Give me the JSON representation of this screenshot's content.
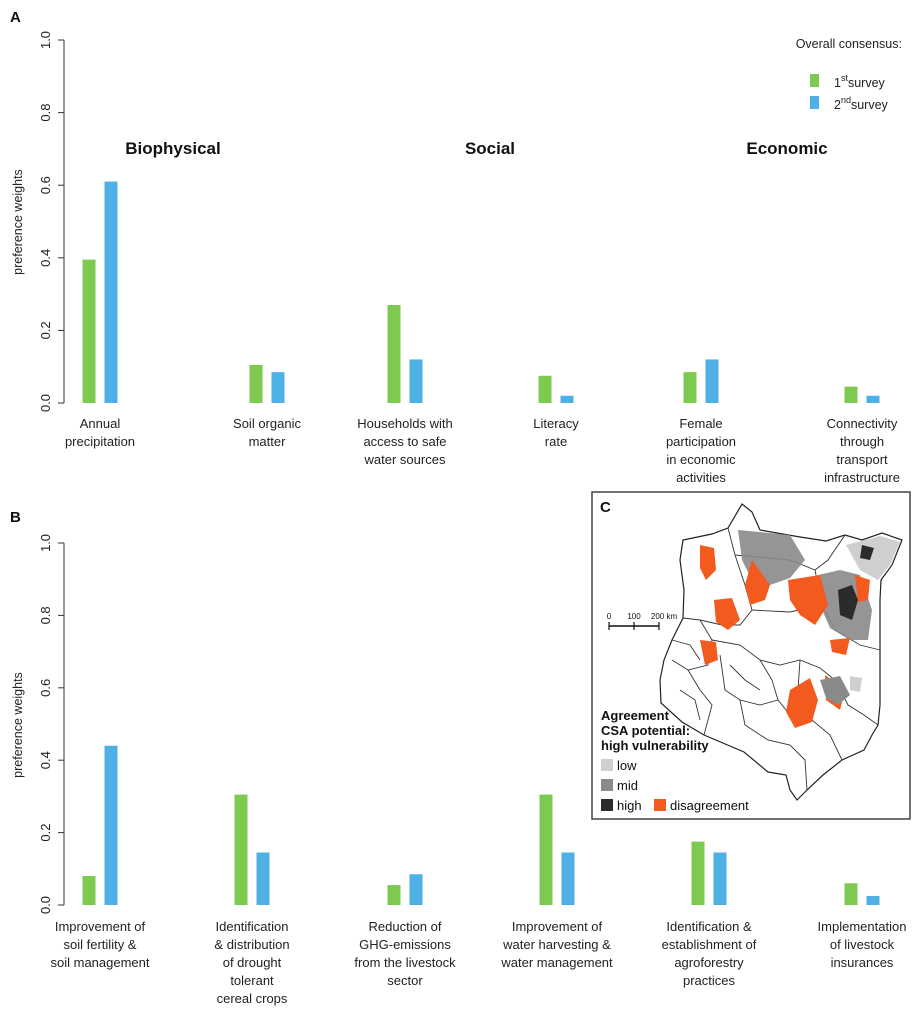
{
  "colors": {
    "survey1": "#7ec94f",
    "survey2": "#4fb0e6",
    "low": "#cfcfcf",
    "mid": "#8a8a8a",
    "high": "#2b2b2b",
    "disagreement": "#f25a1e"
  },
  "legend": {
    "title": "Overall consensus:",
    "s1_num": "1",
    "s1_sup": "st",
    "s1_word": "survey",
    "s2_num": "2",
    "s2_sup": "nd",
    "s2_word": "survey"
  },
  "chart_data": [
    {
      "panel": "A",
      "type": "bar",
      "ylabel": "preference weights",
      "ylim": [
        0,
        1.0
      ],
      "yticks": [
        "0.0",
        "0.2",
        "0.4",
        "0.6",
        "0.8",
        "1.0"
      ],
      "groups": [
        "Biophysical",
        "Social",
        "Economic"
      ],
      "categories": [
        [
          "Annual",
          "precipitation"
        ],
        [
          "Soil organic",
          "matter"
        ],
        [
          "Households with",
          "access to safe",
          "water sources"
        ],
        [
          "Literacy",
          "rate"
        ],
        [
          "Female",
          "participation",
          "in economic",
          "activities"
        ],
        [
          "Connectivity",
          "through",
          "transport",
          "infrastructure"
        ]
      ],
      "series": [
        {
          "values": [
            0.395,
            0.105,
            0.27,
            0.075,
            0.085,
            0.045
          ]
        },
        {
          "values": [
            0.61,
            0.085,
            0.12,
            0.02,
            0.12,
            0.02
          ]
        }
      ]
    },
    {
      "panel": "B",
      "type": "bar",
      "ylabel": "preference weights",
      "ylim": [
        0,
        1.0
      ],
      "yticks": [
        "0.0",
        "0.2",
        "0.4",
        "0.6",
        "0.8",
        "1.0"
      ],
      "categories": [
        [
          "Improvement of",
          "soil fertility &",
          "soil management"
        ],
        [
          "Identification",
          "& distribution",
          "of drought",
          "tolerant",
          "cereal crops"
        ],
        [
          "Reduction of",
          "GHG-emissions",
          "from the livestock",
          "sector"
        ],
        [
          "Improvement of",
          "water harvesting &",
          "water management"
        ],
        [
          "Identification &",
          "establishment of",
          "agroforestry",
          "practices"
        ],
        [
          "Implementation",
          "of livestock",
          "insurances"
        ]
      ],
      "series": [
        {
          "values": [
            0.08,
            0.305,
            0.055,
            0.305,
            0.175,
            0.06
          ]
        },
        {
          "values": [
            0.44,
            0.145,
            0.085,
            0.145,
            0.145,
            0.025
          ]
        }
      ]
    }
  ],
  "map": {
    "letter": "C",
    "scale_labels": [
      "0",
      "100",
      "200 km"
    ],
    "title_lines": [
      "Agreement",
      "CSA potential:",
      "high vulnerability"
    ],
    "legend": {
      "low": "low",
      "mid": "mid",
      "high": "high",
      "disagreement": "disagreement"
    }
  }
}
